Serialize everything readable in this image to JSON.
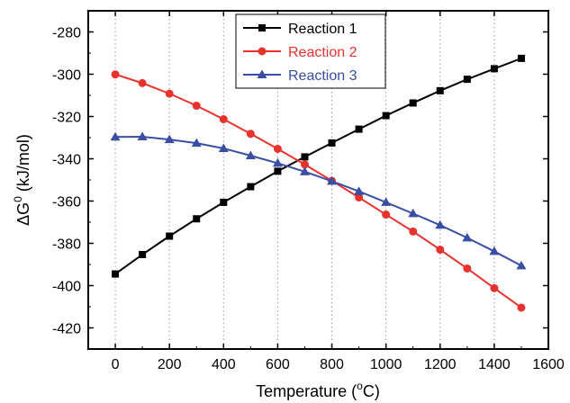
{
  "chart_data": {
    "type": "line",
    "title": "",
    "xlabel": {
      "main": "Temperature (",
      "sup": "o",
      "tail": "C)"
    },
    "ylabel": {
      "delta": "ΔG",
      "sup": "0",
      "tail": " (kJ/mol)"
    },
    "xlim": [
      -100,
      1600
    ],
    "ylim": [
      -430,
      -270
    ],
    "x_ticks": [
      0,
      200,
      400,
      600,
      800,
      1000,
      1200,
      1400,
      1600
    ],
    "y_ticks": [
      -420,
      -400,
      -380,
      -360,
      -340,
      -320,
      -300,
      -280
    ],
    "grid": "vertical dotted at x ticks (0-1400)",
    "legend_position": "top-center",
    "x": [
      0,
      100,
      200,
      300,
      400,
      500,
      600,
      700,
      800,
      900,
      1000,
      1100,
      1200,
      1300,
      1400,
      1500
    ],
    "series": [
      {
        "name": "Reaction 1",
        "color": "#000000",
        "marker": "square",
        "values": [
          -394.5,
          -385.3,
          -376.6,
          -368.4,
          -360.6,
          -353.2,
          -345.9,
          -339.1,
          -332.5,
          -326.0,
          -319.6,
          -313.6,
          -307.8,
          -302.4,
          -297.4,
          -292.5
        ]
      },
      {
        "name": "Reaction 2",
        "color": "#e8322d",
        "marker": "circle",
        "values": [
          -300.1,
          -304.2,
          -309.2,
          -314.9,
          -321.3,
          -328.2,
          -335.3,
          -342.7,
          -350.4,
          -358.3,
          -366.4,
          -374.4,
          -383.0,
          -391.9,
          -401.2,
          -410.4
        ]
      },
      {
        "name": "Reaction 3",
        "color": "#3a4ea3",
        "marker": "triangle",
        "values": [
          -329.7,
          -329.6,
          -330.9,
          -332.6,
          -335.1,
          -338.5,
          -342.1,
          -346.1,
          -350.6,
          -355.4,
          -360.6,
          -365.9,
          -371.4,
          -377.4,
          -383.8,
          -390.6
        ]
      }
    ]
  }
}
